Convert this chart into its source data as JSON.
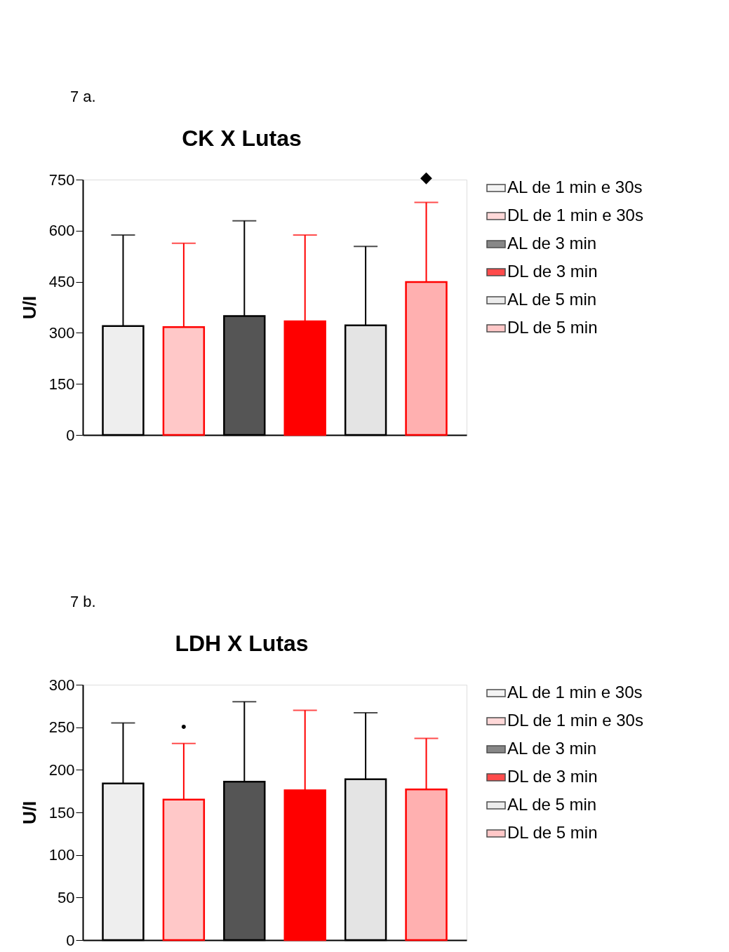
{
  "chart_data": [
    {
      "type": "bar",
      "title": "CK X Lutas",
      "ylabel": "U/I",
      "categories": [
        null
      ],
      "series": [
        {
          "name": "AL de 1 min e 30s",
          "color": "#eeeeee",
          "values": [
            320
          ],
          "errors": [
            [
              320,
              587
            ]
          ]
        },
        {
          "name": "DL de 1 min e 30s",
          "color": "#ffc8c8",
          "values": [
            317
          ],
          "errors": [
            [
              317,
              563
            ]
          ]
        },
        {
          "name": "AL de 3 min",
          "color": "#555555",
          "values": [
            349
          ],
          "errors": [
            [
              349,
              629
            ]
          ]
        },
        {
          "name": "DL de 3 min",
          "color": "#ff0000",
          "values": [
            334
          ],
          "errors": [
            [
              334,
              587
            ]
          ]
        },
        {
          "name": "AL de 5 min",
          "color": "#e4e4e4",
          "values": [
            322
          ],
          "errors": [
            [
              322,
              554
            ]
          ]
        },
        {
          "name": "DL de 5 min",
          "color": "#ffb0b0",
          "values": [
            449
          ],
          "errors": [
            [
              449,
              683
            ]
          ]
        }
      ],
      "ylim": [
        0,
        750
      ],
      "yticks": [
        0,
        150,
        300,
        450,
        600,
        750
      ],
      "grid": false,
      "legend": "top right",
      "tick_labels": "y",
      "annotations": [
        "7 a.",
        "◆"
      ]
    },
    {
      "type": "bar",
      "title": "LDH X Lutas",
      "ylabel": "U/I",
      "categories": [
        null
      ],
      "series": [
        {
          "name": "AL de 1 min e 30s",
          "color": "#eeeeee",
          "values": [
            184
          ],
          "errors": [
            [
              184,
              255
            ]
          ]
        },
        {
          "name": "DL de 1 min e 30s",
          "color": "#ffc8c8",
          "values": [
            165
          ],
          "errors": [
            [
              165,
              231
            ]
          ]
        },
        {
          "name": "AL de 3 min",
          "color": "#555555",
          "values": [
            186
          ],
          "errors": [
            [
              186,
              280
            ]
          ]
        },
        {
          "name": "DL de 3 min",
          "color": "#ff0000",
          "values": [
            176
          ],
          "errors": [
            [
              176,
              270
            ]
          ]
        },
        {
          "name": "AL de 5 min",
          "color": "#e4e4e4",
          "values": [
            189
          ],
          "errors": [
            [
              189,
              267
            ]
          ]
        },
        {
          "name": "DL de 5 min",
          "color": "#ffb0b0",
          "values": [
            177
          ],
          "errors": [
            [
              177,
              237
            ]
          ]
        }
      ],
      "ylim": [
        0,
        300
      ],
      "yticks": [
        0,
        50,
        100,
        150,
        200,
        250,
        300
      ],
      "grid": false,
      "legend": "top right",
      "tick_labels": "y",
      "annotations": [
        "7 b.",
        "•"
      ]
    }
  ]
}
